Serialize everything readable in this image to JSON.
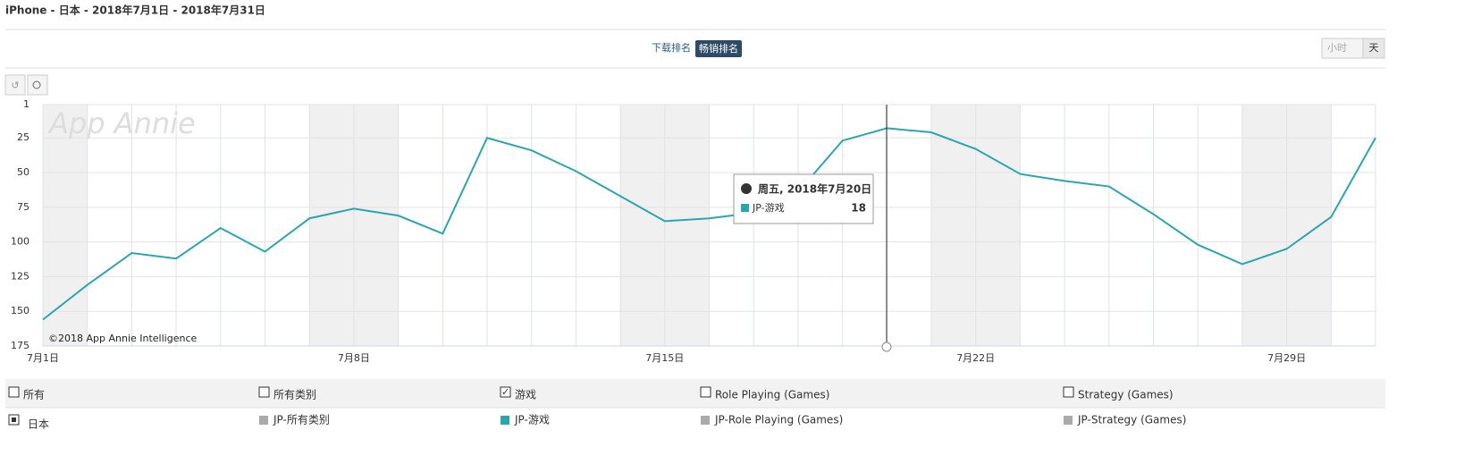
{
  "header": {
    "title": "iPhone - 日本 - 2018年7月1日 - 2018年7月31日"
  },
  "controls": {
    "download_rank": "下载排名",
    "grossing_rank": "畅销排名",
    "hour": "小时",
    "day": "天"
  },
  "watermark": "App Annie",
  "copyright": "©2018 App Annie Intelligence",
  "tooltip": {
    "date": "周五, 2018年7月20日"
  },
  "filters": {
    "row1": [
      "所有",
      "所有类别",
      "游戏",
      "Role Playing (Games)",
      "Strategy (Games)"
    ],
    "row2": [
      "日本",
      "JP-所有类别"
    ],
    "row2_rest": [
      "JP-Role Playing (Games)",
      "JP-Strategy (Games)"
    ]
  },
  "chart_data": {
    "type": "line",
    "categories": [
      "7月1日",
      null,
      null,
      null,
      null,
      null,
      null,
      "7月8日",
      null,
      null,
      null,
      null,
      null,
      null,
      "7月15日",
      null,
      null,
      null,
      null,
      null,
      null,
      "7月22日",
      null,
      null,
      null,
      null,
      null,
      null,
      "7月29日",
      null,
      null
    ],
    "series": [
      {
        "name": "JP-游戏",
        "color": "#2aa6b0",
        "values": [
          156,
          131,
          108,
          112,
          90,
          107,
          83,
          76,
          81,
          94,
          25,
          34,
          49,
          67,
          85,
          83,
          79,
          64,
          27,
          18,
          21,
          33,
          51,
          56,
          60,
          80,
          102,
          116,
          105,
          82,
          25
        ]
      }
    ],
    "ylim": [
      175,
      1
    ],
    "yticks": [
      1,
      25,
      50,
      75,
      100,
      125,
      150,
      175
    ],
    "grid": true
  }
}
